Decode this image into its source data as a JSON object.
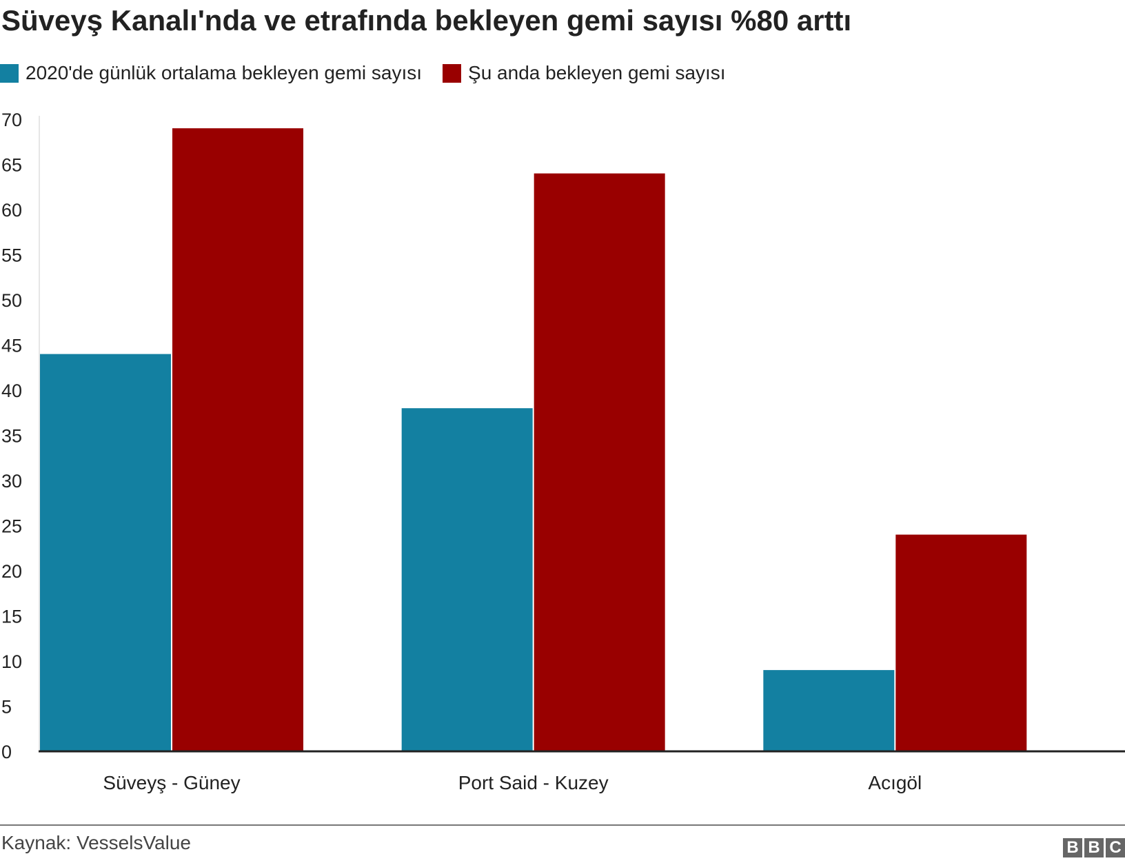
{
  "chart_data": {
    "type": "bar",
    "title": "Süveyş Kanalı'nda ve etrafında bekleyen gemi sayısı %80 arttı",
    "categories": [
      "Süveyş - Güney",
      "Port Said - Kuzey",
      "Acıgöl"
    ],
    "series": [
      {
        "name": "2020'de günlük ortalama bekleyen gemi sayısı",
        "color": "#1380a1",
        "values": [
          44,
          38,
          9
        ]
      },
      {
        "name": "Şu anda bekleyen gemi sayısı",
        "color": "#990000",
        "values": [
          69,
          64,
          24
        ]
      }
    ],
    "ylim": [
      0,
      70
    ],
    "yticks": [
      "0",
      "5",
      "10",
      "15",
      "20",
      "25",
      "30",
      "35",
      "40",
      "45",
      "50",
      "55",
      "60",
      "65",
      "70"
    ],
    "xlabel": "",
    "ylabel": "",
    "grid": false,
    "legend": "top-left"
  },
  "footer": {
    "source": "Kaynak: VesselsValue",
    "logo": "BBC"
  }
}
